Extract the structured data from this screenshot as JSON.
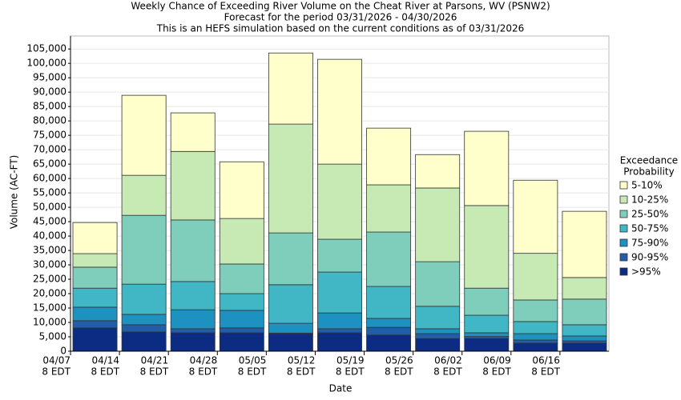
{
  "chart_data": {
    "type": "stacked_bar",
    "title": "Weekly Chance of Exceeding River Volume on the Cheat River at Parsons, WV (PSNW2)",
    "subtitle": [
      "Forecast for the period 03/31/2026 - 04/30/2026",
      "This is an HEFS simulation based on the current conditions as of 03/31/2026"
    ],
    "x_label": "Date",
    "y_label": "Volume (AC-FT)",
    "legend_title": [
      "Exceedance",
      "Probability"
    ],
    "categories": [
      "04/07",
      "04/14",
      "04/21",
      "04/28",
      "05/05",
      "05/12",
      "05/19",
      "05/26",
      "06/02",
      "06/09",
      "06/16"
    ],
    "x_tick_suffix": "8 EDT",
    "series": [
      {
        "name": ">95%",
        "color": "#0c2c84",
        "values": [
          8100,
          6700,
          6400,
          6400,
          6000,
          6400,
          5600,
          4400,
          4400,
          2800,
          2800
        ]
      },
      {
        "name": "90-95%",
        "color": "#225ea8",
        "values": [
          2500,
          2500,
          1400,
          1700,
          300,
          1400,
          2700,
          1700,
          700,
          1100,
          800
        ]
      },
      {
        "name": "75-90%",
        "color": "#1d91c0",
        "values": [
          4700,
          3600,
          6600,
          6100,
          3400,
          5500,
          3100,
          1700,
          1300,
          2200,
          1700
        ]
      },
      {
        "name": "50-75%",
        "color": "#41b6c4",
        "values": [
          6600,
          10500,
          9800,
          5800,
          13400,
          14200,
          11100,
          7800,
          6100,
          4200,
          3900
        ]
      },
      {
        "name": "25-50%",
        "color": "#7fcdbb",
        "values": [
          7300,
          23900,
          21400,
          10300,
          18000,
          11400,
          18900,
          15500,
          9400,
          7500,
          8900
        ]
      },
      {
        "name": "10-25%",
        "color": "#c7e9b4",
        "values": [
          4700,
          13900,
          23800,
          15800,
          37800,
          26100,
          16400,
          25600,
          28700,
          16200,
          7500
        ]
      },
      {
        "name": "5-10%",
        "color": "#ffffcc",
        "values": [
          10800,
          27800,
          13400,
          19700,
          24700,
          36400,
          19700,
          11600,
          25800,
          25400,
          23000
        ]
      }
    ],
    "ylim": [
      0,
      109500
    ],
    "yticks": [
      0,
      {
        "value": 5000,
        "label": "5,000"
      },
      {
        "value": 10000,
        "label": "10,000"
      },
      {
        "value": 15000,
        "label": "15,000"
      },
      {
        "value": 20000,
        "label": "20,000"
      },
      {
        "value": 25000,
        "label": "25,000"
      },
      {
        "value": 30000,
        "label": "30,000"
      },
      {
        "value": 35000,
        "label": "35,000"
      },
      {
        "value": 40000,
        "label": "40,000"
      },
      {
        "value": 45000,
        "label": "45,000"
      },
      {
        "value": 50000,
        "label": "50,000"
      },
      {
        "value": 55000,
        "label": "55,000"
      },
      {
        "value": 60000,
        "label": "60,000"
      },
      {
        "value": 65000,
        "label": "65,000"
      },
      {
        "value": 70000,
        "label": "70,000"
      },
      {
        "value": 75000,
        "label": "75,000"
      },
      {
        "value": 80000,
        "label": "80,000"
      },
      {
        "value": 85000,
        "label": "85,000"
      },
      {
        "value": 90000,
        "label": "90,000"
      },
      {
        "value": 95000,
        "label": "95,000"
      },
      {
        "value": 100000,
        "label": "100,000"
      },
      {
        "value": 105000,
        "label": "105,000"
      }
    ],
    "grid": true
  }
}
